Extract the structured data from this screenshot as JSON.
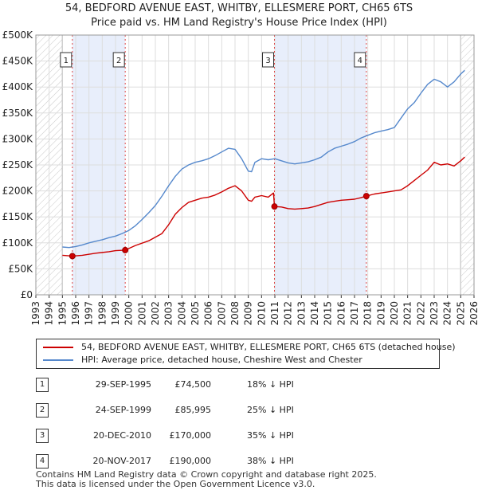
{
  "header": {
    "line1": "54, BEDFORD AVENUE EAST, WHITBY, ELLESMERE PORT, CH65 6TS",
    "line2": "Price paid vs. HM Land Registry's House Price Index (HPI)"
  },
  "chart_data": {
    "type": "line",
    "title": "54, BEDFORD AVENUE EAST, WHITBY, ELLESMERE PORT, CH65 6TS",
    "subtitle": "Price paid vs. HM Land Registry's House Price Index (HPI)",
    "xlabel": "",
    "ylabel": "",
    "xlim": [
      1993,
      2026
    ],
    "ylim": [
      0,
      500000
    ],
    "x_ticks": [
      "1993",
      "1994",
      "1995",
      "1996",
      "1997",
      "1998",
      "1999",
      "2000",
      "2001",
      "2002",
      "2003",
      "2004",
      "2005",
      "2006",
      "2007",
      "2008",
      "2009",
      "2010",
      "2011",
      "2012",
      "2013",
      "2014",
      "2015",
      "2016",
      "2017",
      "2018",
      "2019",
      "2020",
      "2021",
      "2022",
      "2023",
      "2024",
      "2025",
      "2026"
    ],
    "y_ticks": [
      {
        "value": 0,
        "label": "£0"
      },
      {
        "value": 50000,
        "label": "£50K"
      },
      {
        "value": 100000,
        "label": "£100K"
      },
      {
        "value": 150000,
        "label": "£150K"
      },
      {
        "value": 200000,
        "label": "£200K"
      },
      {
        "value": 250000,
        "label": "£250K"
      },
      {
        "value": 300000,
        "label": "£300K"
      },
      {
        "value": 350000,
        "label": "£350K"
      },
      {
        "value": 400000,
        "label": "£400K"
      },
      {
        "value": 450000,
        "label": "£450K"
      },
      {
        "value": 500000,
        "label": "£500K"
      }
    ],
    "grid": true,
    "hatched_ranges": [
      [
        1993,
        1995.0
      ],
      [
        2025.0,
        2026
      ]
    ],
    "shaded_ranges": [
      [
        1995.75,
        1999.73
      ],
      [
        2010.97,
        2017.89
      ]
    ],
    "series": [
      {
        "name": "54, BEDFORD AVENUE EAST, WHITBY, ELLESMERE PORT, CH65 6TS (detached house)",
        "color": "#cc0000",
        "x": [
          1995.0,
          1995.5,
          1995.75,
          1996.5,
          1997.5,
          1998.5,
          1999.0,
          1999.73,
          2000.5,
          2001.5,
          2002.5,
          2003.0,
          2003.5,
          2004.0,
          2004.5,
          2005.0,
          2005.5,
          2006.0,
          2006.5,
          2007.0,
          2007.5,
          2008.0,
          2008.5,
          2009.0,
          2009.25,
          2009.5,
          2010.0,
          2010.5,
          2010.9,
          2010.97,
          2011.5,
          2012.0,
          2012.5,
          2013.0,
          2013.5,
          2014.0,
          2014.5,
          2015.0,
          2015.5,
          2016.0,
          2016.5,
          2017.0,
          2017.5,
          2017.89,
          2018.5,
          2019.0,
          2019.5,
          2020.0,
          2020.5,
          2021.0,
          2021.5,
          2022.0,
          2022.5,
          2023.0,
          2023.5,
          2024.0,
          2024.5,
          2025.0,
          2025.3
        ],
        "y": [
          76000,
          75000,
          74500,
          76000,
          80000,
          83000,
          85000,
          85995,
          95000,
          104000,
          118000,
          135000,
          155000,
          168000,
          178000,
          182000,
          186000,
          188000,
          192000,
          198000,
          205000,
          210000,
          200000,
          182000,
          180000,
          188000,
          191000,
          188000,
          196000,
          170000,
          169000,
          166000,
          165000,
          166000,
          167000,
          170000,
          174000,
          178000,
          180000,
          182000,
          183000,
          184000,
          187000,
          190000,
          194000,
          196000,
          198000,
          200000,
          202000,
          210000,
          220000,
          230000,
          240000,
          255000,
          250000,
          252000,
          248000,
          258000,
          265000
        ]
      },
      {
        "name": "HPI: Average price, detached house, Cheshire West and Chester",
        "color": "#5588cc",
        "x": [
          1995.0,
          1995.5,
          1996.0,
          1996.5,
          1997.0,
          1997.5,
          1998.0,
          1998.5,
          1999.0,
          1999.5,
          2000.0,
          2000.5,
          2001.0,
          2001.5,
          2002.0,
          2002.5,
          2003.0,
          2003.5,
          2004.0,
          2004.5,
          2005.0,
          2005.5,
          2006.0,
          2006.5,
          2007.0,
          2007.5,
          2008.0,
          2008.5,
          2009.0,
          2009.25,
          2009.5,
          2010.0,
          2010.5,
          2011.0,
          2011.5,
          2012.0,
          2012.5,
          2013.0,
          2013.5,
          2014.0,
          2014.5,
          2015.0,
          2015.5,
          2016.0,
          2016.5,
          2017.0,
          2017.5,
          2018.0,
          2018.5,
          2019.0,
          2019.5,
          2020.0,
          2020.5,
          2021.0,
          2021.5,
          2022.0,
          2022.5,
          2023.0,
          2023.5,
          2024.0,
          2024.5,
          2025.0,
          2025.3
        ],
        "y": [
          92000,
          91000,
          93000,
          96000,
          100000,
          103000,
          106000,
          110000,
          113000,
          118000,
          124000,
          133000,
          145000,
          158000,
          172000,
          190000,
          210000,
          228000,
          242000,
          250000,
          255000,
          258000,
          262000,
          268000,
          275000,
          282000,
          280000,
          262000,
          238000,
          237000,
          255000,
          262000,
          260000,
          262000,
          258000,
          254000,
          252000,
          254000,
          256000,
          260000,
          265000,
          275000,
          282000,
          286000,
          290000,
          295000,
          302000,
          307000,
          312000,
          315000,
          318000,
          322000,
          340000,
          358000,
          370000,
          388000,
          405000,
          415000,
          410000,
          400000,
          410000,
          425000,
          432000
        ]
      }
    ],
    "sales": [
      {
        "label": "1",
        "x": 1995.75,
        "price": 74500
      },
      {
        "label": "2",
        "x": 1999.73,
        "price": 85995
      },
      {
        "label": "3",
        "x": 2010.97,
        "price": 170000
      },
      {
        "label": "4",
        "x": 2017.89,
        "price": 190000
      }
    ]
  },
  "legend": {
    "property": "54, BEDFORD AVENUE EAST, WHITBY, ELLESMERE PORT, CH65 6TS (detached house)",
    "hpi": "HPI: Average price, detached house, Cheshire West and Chester"
  },
  "sales_table": [
    {
      "num": "1",
      "date": "29-SEP-1995",
      "price": "£74,500",
      "hpi": "18% ↓ HPI"
    },
    {
      "num": "2",
      "date": "24-SEP-1999",
      "price": "£85,995",
      "hpi": "25% ↓ HPI"
    },
    {
      "num": "3",
      "date": "20-DEC-2010",
      "price": "£170,000",
      "hpi": "35% ↓ HPI"
    },
    {
      "num": "4",
      "date": "20-NOV-2017",
      "price": "£190,000",
      "hpi": "38% ↓ HPI"
    }
  ],
  "footer": {
    "line1": "Contains HM Land Registry data © Crown copyright and database right 2025.",
    "line2": "This data is licensed under the Open Government Licence v3.0."
  }
}
